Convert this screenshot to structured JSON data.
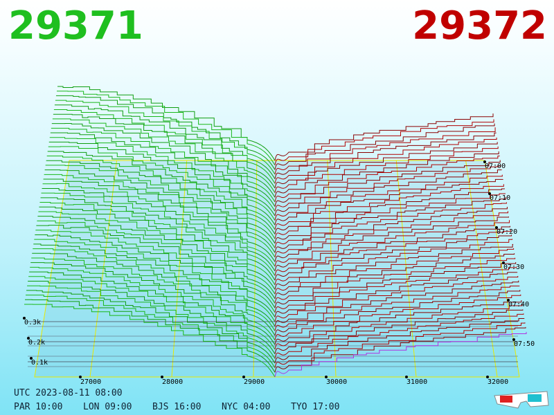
{
  "header": {
    "bid": "29371",
    "ask": "29372"
  },
  "axis": {
    "prices": [
      "27000",
      "28000",
      "29000",
      "30000",
      "31000",
      "32000"
    ],
    "times": [
      "07:00",
      "07:10",
      "07:20",
      "07:30",
      "07:40",
      "07:50"
    ],
    "depths": [
      "0.3k",
      "0.2k",
      "0.1k"
    ]
  },
  "footer": {
    "utc": "UTC 2023-08-11 08:00",
    "clocks": [
      "PAR 10:00",
      "LON 09:00",
      "BJS 16:00",
      "NYC 04:00",
      "TYO 17:00"
    ]
  }
}
